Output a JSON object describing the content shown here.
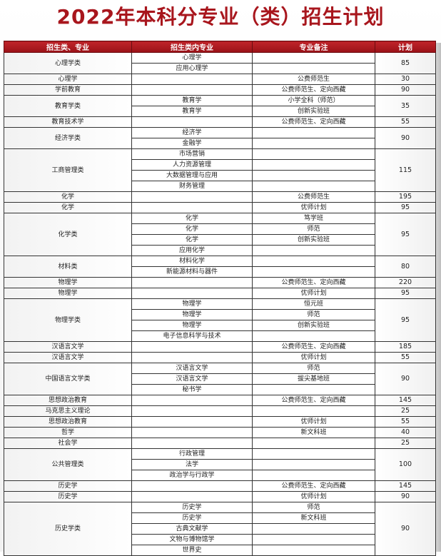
{
  "title": "2022年本科分专业（类）招生计划",
  "headers": [
    "招生类、专业",
    "招生类内专业",
    "专业备注",
    "计划"
  ],
  "groups": [
    {
      "name": "心理学类",
      "plan": "85",
      "rows": [
        {
          "major": "心理学",
          "note": ""
        },
        {
          "major": "应用心理学",
          "note": ""
        }
      ]
    },
    {
      "name": "心理学",
      "plan": "30",
      "rows": [
        {
          "major": "",
          "note": "公费师范生"
        }
      ]
    },
    {
      "name": "学前教育",
      "plan": "90",
      "rows": [
        {
          "major": "",
          "note": "公费师范生、定向西藏"
        }
      ]
    },
    {
      "name": "教育学类",
      "plan": "35",
      "rows": [
        {
          "major": "教育学",
          "note": "小学全科（师范）"
        },
        {
          "major": "教育学",
          "note": "创新实验班"
        }
      ]
    },
    {
      "name": "教育技术学",
      "plan": "55",
      "rows": [
        {
          "major": "",
          "note": "公费师范生、定向西藏"
        }
      ]
    },
    {
      "name": "经济学类",
      "plan": "90",
      "rows": [
        {
          "major": "经济学",
          "note": ""
        },
        {
          "major": "金融学",
          "note": ""
        }
      ]
    },
    {
      "name": "工商管理类",
      "plan": "115",
      "rows": [
        {
          "major": "市场营销",
          "note": ""
        },
        {
          "major": "人力资源管理",
          "note": ""
        },
        {
          "major": "大数据管理与应用",
          "note": ""
        },
        {
          "major": "财务管理",
          "note": ""
        }
      ]
    },
    {
      "name": "化学",
      "plan": "195",
      "rows": [
        {
          "major": "",
          "note": "公费师范生"
        }
      ]
    },
    {
      "name": "化学",
      "plan": "95",
      "rows": [
        {
          "major": "",
          "note": "优师计划"
        }
      ]
    },
    {
      "name": "化学类",
      "plan": "95",
      "rows": [
        {
          "major": "化学",
          "note": "笃学班"
        },
        {
          "major": "化学",
          "note": "师范"
        },
        {
          "major": "化学",
          "note": "创新实验班"
        },
        {
          "major": "应用化学",
          "note": ""
        }
      ]
    },
    {
      "name": "材料类",
      "plan": "80",
      "rows": [
        {
          "major": "材料化学",
          "note": ""
        },
        {
          "major": "新能源材料与器件",
          "note": ""
        }
      ]
    },
    {
      "name": "物理学",
      "plan": "220",
      "rows": [
        {
          "major": "",
          "note": "公费师范生、定向西藏"
        }
      ]
    },
    {
      "name": "物理学",
      "plan": "95",
      "rows": [
        {
          "major": "",
          "note": "优师计划"
        }
      ]
    },
    {
      "name": "物理学类",
      "plan": "95",
      "rows": [
        {
          "major": "物理学",
          "note": "恒元班"
        },
        {
          "major": "物理学",
          "note": "师范"
        },
        {
          "major": "物理学",
          "note": "创新实验班"
        },
        {
          "major": "电子信息科学与技术",
          "note": ""
        }
      ]
    },
    {
      "name": "汉语言文学",
      "plan": "185",
      "rows": [
        {
          "major": "",
          "note": "公费师范生、定向西藏"
        }
      ]
    },
    {
      "name": "汉语言文学",
      "plan": "55",
      "rows": [
        {
          "major": "",
          "note": "优师计划"
        }
      ]
    },
    {
      "name": "中国语言文学类",
      "plan": "90",
      "rows": [
        {
          "major": "汉语言文学",
          "note": "师范"
        },
        {
          "major": "汉语言文学",
          "note": "拔尖基地班"
        },
        {
          "major": "秘书学",
          "note": ""
        }
      ]
    },
    {
      "name": "思想政治教育",
      "plan": "145",
      "rows": [
        {
          "major": "",
          "note": "公费师范生、定向西藏"
        }
      ]
    },
    {
      "name": "马克思主义理论",
      "plan": "25",
      "rows": [
        {
          "major": "",
          "note": ""
        }
      ]
    },
    {
      "name": "思想政治教育",
      "plan": "55",
      "rows": [
        {
          "major": "",
          "note": "优师计划"
        }
      ]
    },
    {
      "name": "哲学",
      "plan": "40",
      "rows": [
        {
          "major": "",
          "note": "新文科班"
        }
      ]
    },
    {
      "name": "社会学",
      "plan": "25",
      "rows": [
        {
          "major": "",
          "note": ""
        }
      ]
    },
    {
      "name": "公共管理类",
      "plan": "100",
      "rows": [
        {
          "major": "行政管理",
          "note": ""
        },
        {
          "major": "法学",
          "note": ""
        },
        {
          "major": "政治学与行政学",
          "note": ""
        }
      ]
    },
    {
      "name": "历史学",
      "plan": "145",
      "rows": [
        {
          "major": "",
          "note": "公费师范生、定向西藏"
        }
      ]
    },
    {
      "name": "历史学",
      "plan": "90",
      "rows": [
        {
          "major": "",
          "note": "优师计划"
        }
      ]
    },
    {
      "name": "历史学类",
      "plan": "90",
      "rows": [
        {
          "major": "历史学",
          "note": "师范"
        },
        {
          "major": "历史学",
          "note": "新文科班"
        },
        {
          "major": "古典文献学",
          "note": ""
        },
        {
          "major": "文物与博物馆学",
          "note": ""
        },
        {
          "major": "世界史",
          "note": ""
        }
      ]
    }
  ]
}
